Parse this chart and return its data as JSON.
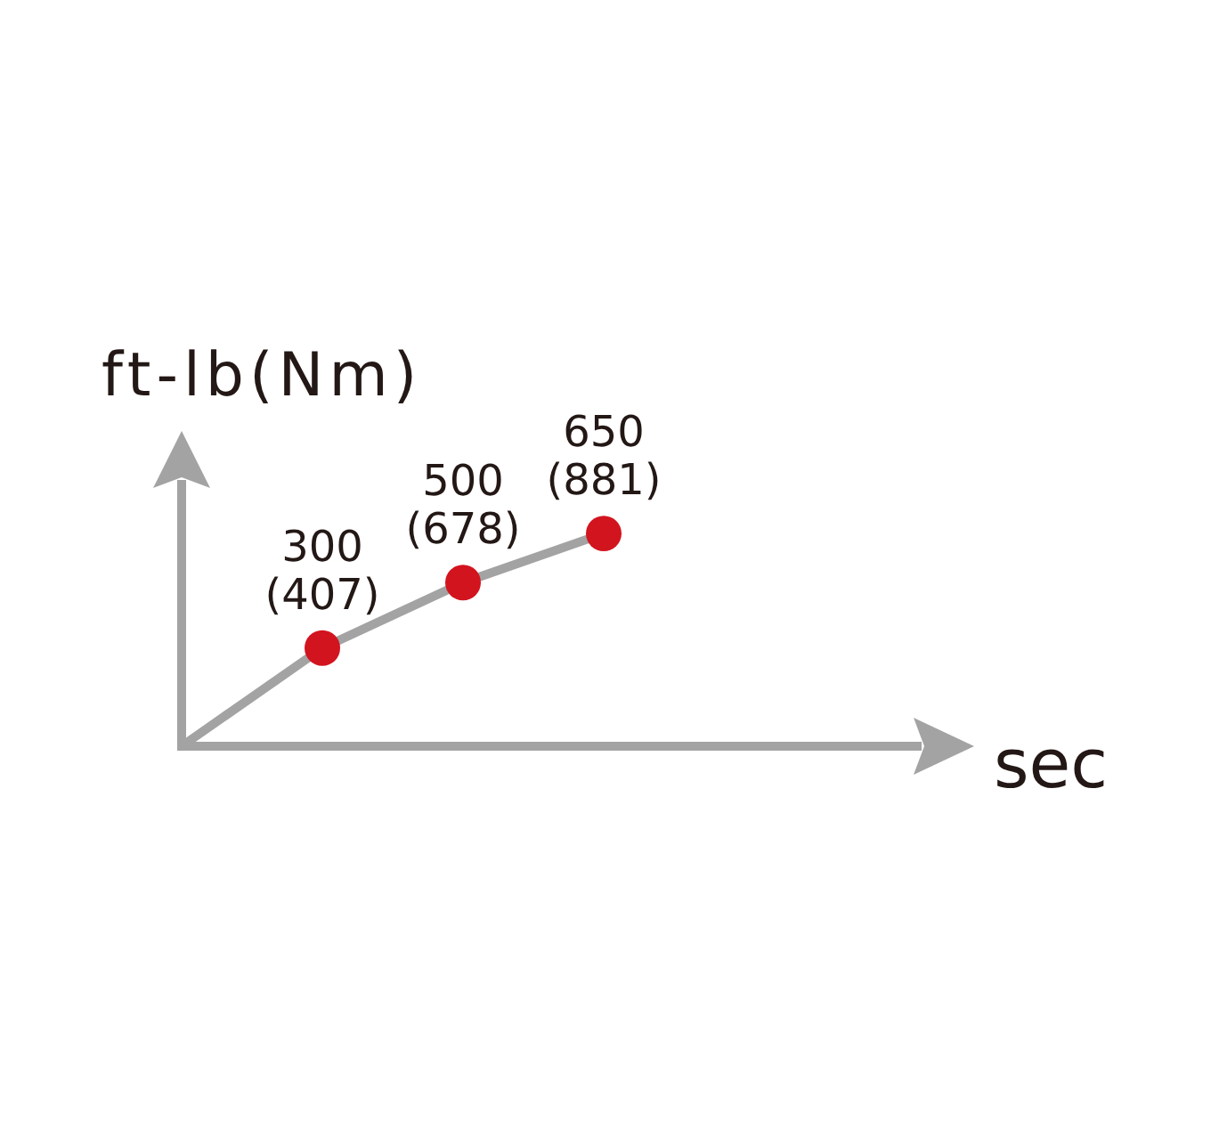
{
  "chart_data": {
    "type": "line",
    "xlabel": "sec",
    "ylabel": "ft-lb(Nm)",
    "categories": [
      null,
      null,
      null,
      null
    ],
    "tick_labels": false,
    "marker": "circle",
    "series": [
      {
        "color": "#a3a3a3",
        "colors": [
          null,
          "#d2141e",
          "#d2141e",
          "#d2141e"
        ],
        "values": [
          0,
          300,
          500,
          650
        ],
        "value_labels": [
          null,
          "300\n(407)",
          "500\n(678)",
          "650\n(881)"
        ]
      }
    ]
  }
}
